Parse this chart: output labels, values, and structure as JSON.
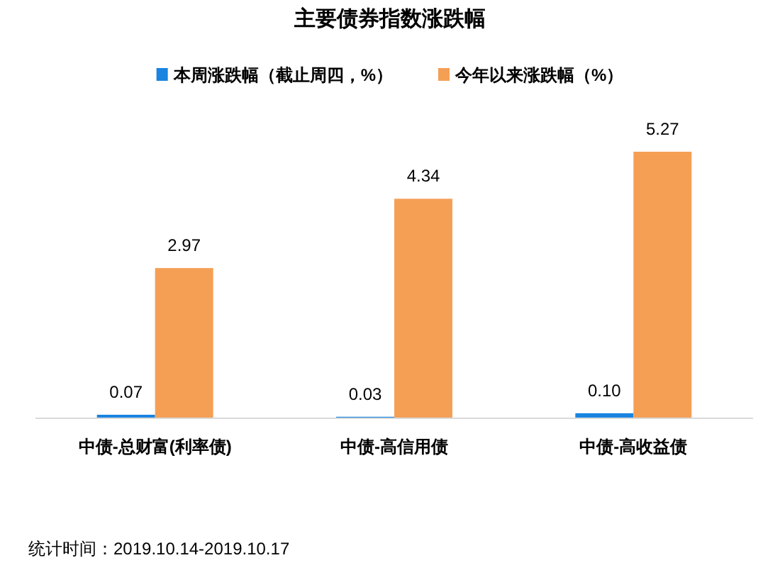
{
  "chart_data": {
    "type": "bar",
    "title": "主要债券指数涨跌幅",
    "categories": [
      "中债-总财富(利率债)",
      "中债-高信用债",
      "中债-高收益债"
    ],
    "series": [
      {
        "name": "本周涨跌幅（截止周四，%）",
        "color": "#1a84e0",
        "values": [
          0.07,
          0.03,
          0.1
        ],
        "value_labels": [
          "0.07",
          "0.03",
          "0.10"
        ]
      },
      {
        "name": "今年以来涨跌幅（%）",
        "color": "#f59f55",
        "values": [
          2.97,
          4.34,
          5.27
        ],
        "value_labels": [
          "2.97",
          "4.34",
          "5.27"
        ]
      }
    ],
    "legend": "top",
    "annotations": [
      "统计时间：2019.10.14-2019.10.17"
    ]
  }
}
